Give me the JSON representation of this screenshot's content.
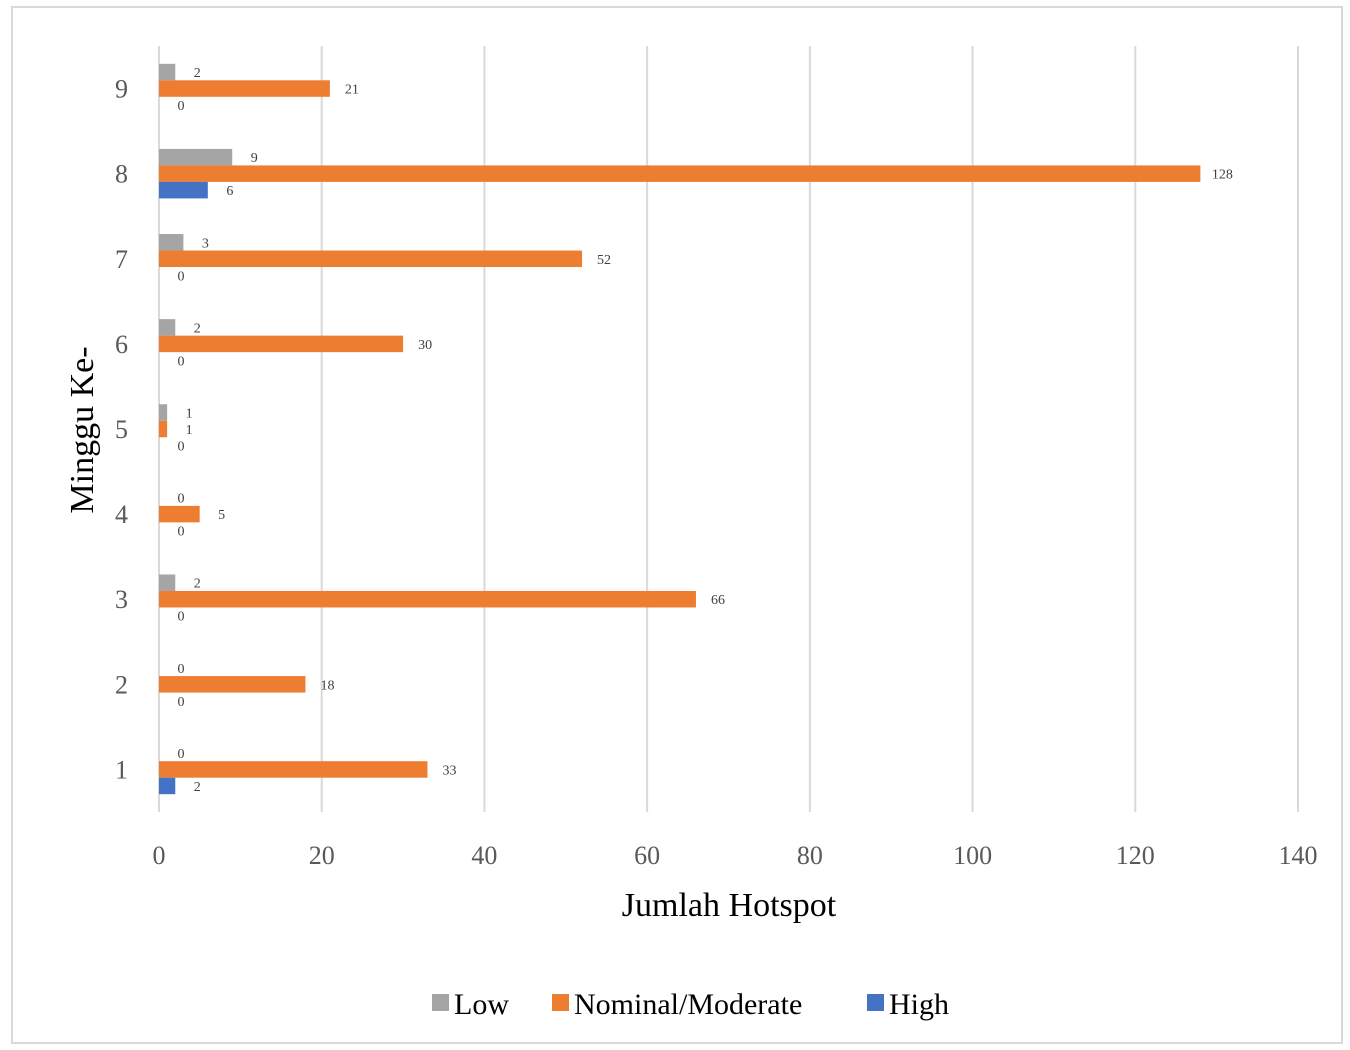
{
  "chart_data": {
    "type": "bar",
    "orientation": "horizontal",
    "categories": [
      "1",
      "2",
      "3",
      "4",
      "5",
      "6",
      "7",
      "8",
      "9"
    ],
    "series": [
      {
        "name": "Low",
        "color": "#a5a5a5",
        "values": [
          0,
          0,
          2,
          0,
          1,
          2,
          3,
          9,
          2
        ]
      },
      {
        "name": "Nominal/Moderate",
        "color": "#ed7d31",
        "values": [
          33,
          18,
          66,
          5,
          1,
          30,
          52,
          128,
          21
        ]
      },
      {
        "name": "High",
        "color": "#4472c4",
        "values": [
          2,
          0,
          0,
          0,
          0,
          0,
          0,
          6,
          0
        ]
      }
    ],
    "xlabel": "Jumlah Hotspot",
    "ylabel": "Minggu Ke-",
    "xlim": [
      0,
      140
    ],
    "xticks": [
      0,
      20,
      40,
      60,
      80,
      100,
      120,
      140
    ],
    "grid": "vertical",
    "gridColor": "#d9d9d9",
    "legend": "bottom",
    "data_labels": true
  }
}
